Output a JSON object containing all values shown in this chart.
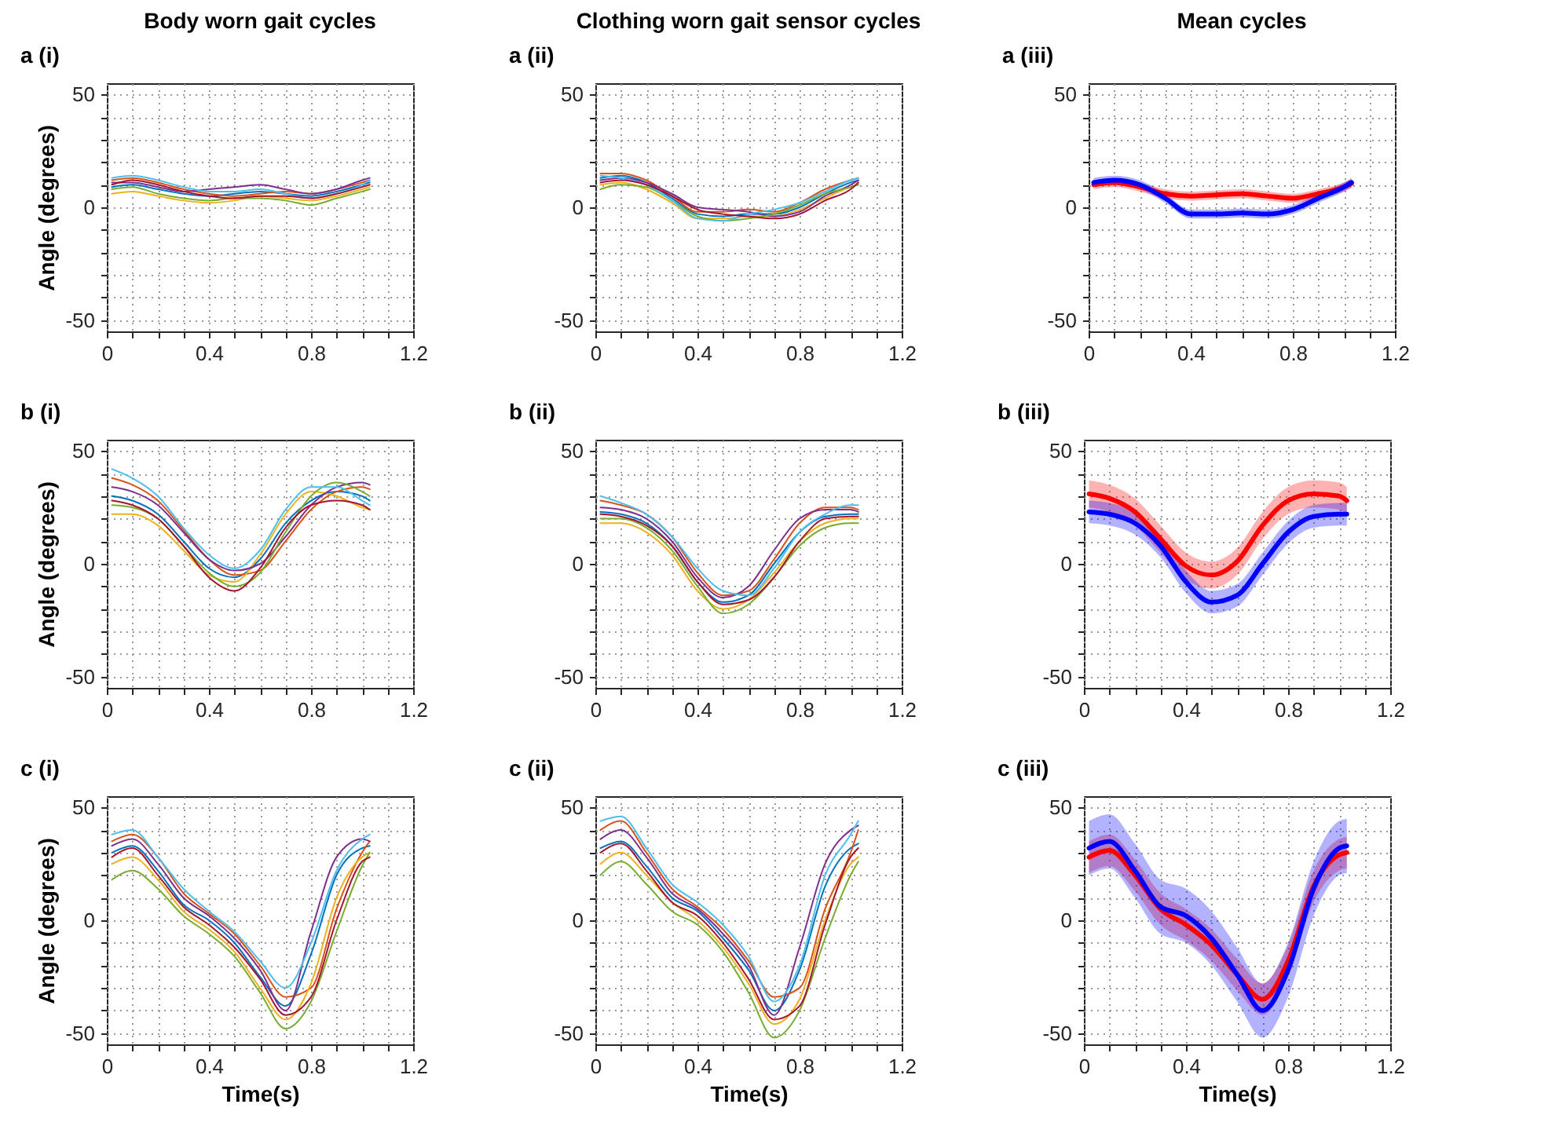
{
  "chart_data": [
    {
      "type": "line",
      "title": "Body worn gait cycles",
      "annotations": [
        "a (i)"
      ],
      "ylabel": "Angle (degrees)",
      "x": [
        0.02,
        0.1,
        0.2,
        0.3,
        0.4,
        0.5,
        0.6,
        0.7,
        0.8,
        0.9,
        1.0,
        1.03
      ],
      "xlim": [
        0,
        1.2
      ],
      "xticks": [
        0,
        {
          "value": 0.1,
          "label": null
        },
        {
          "value": 0.2,
          "label": null
        },
        {
          "value": 0.3,
          "label": null
        },
        0.4,
        {
          "value": 0.5,
          "label": null
        },
        {
          "value": 0.6,
          "label": null
        },
        {
          "value": 0.7,
          "label": null
        },
        0.8,
        {
          "value": 0.9,
          "label": null
        },
        {
          "value": 1.0,
          "label": null
        },
        {
          "value": 1.1,
          "label": null
        },
        1.2
      ],
      "ylim": [
        -55,
        55
      ],
      "yticks": [
        -50,
        {
          "value": -40,
          "label": null
        },
        {
          "value": -30,
          "label": null
        },
        {
          "value": -20,
          "label": null
        },
        {
          "value": -10,
          "label": null
        },
        0,
        {
          "value": 10,
          "label": null
        },
        {
          "value": 20,
          "label": null
        },
        {
          "value": 30,
          "label": null
        },
        {
          "value": 40,
          "label": null
        },
        50
      ],
      "grid": true,
      "series": [
        {
          "color": "#0072bd",
          "values": [
            9,
            10,
            8,
            6,
            5,
            6,
            7,
            6,
            5,
            7,
            10,
            11
          ]
        },
        {
          "color": "#d95319",
          "values": [
            12,
            13,
            11,
            8,
            6,
            5,
            6,
            7,
            6,
            8,
            11,
            12
          ]
        },
        {
          "color": "#edb120",
          "values": [
            6,
            7,
            5,
            3,
            2,
            3,
            5,
            4,
            3,
            5,
            8,
            9
          ]
        },
        {
          "color": "#7e2f8e",
          "values": [
            11,
            11,
            9,
            7,
            8,
            9,
            10,
            8,
            6,
            8,
            12,
            13
          ]
        },
        {
          "color": "#77ac30",
          "values": [
            8,
            9,
            6,
            4,
            3,
            4,
            4,
            3,
            1,
            4,
            7,
            8
          ]
        },
        {
          "color": "#4dbeee",
          "values": [
            13,
            14,
            12,
            9,
            7,
            7,
            8,
            6,
            4,
            6,
            10,
            12
          ]
        },
        {
          "color": "#a2142f",
          "values": [
            10,
            12,
            10,
            7,
            5,
            4,
            5,
            5,
            4,
            6,
            9,
            10
          ]
        }
      ]
    },
    {
      "type": "line",
      "title": "Clothing worn gait sensor cycles",
      "annotations": [
        "a (ii)"
      ],
      "x": [
        0.02,
        0.1,
        0.2,
        0.3,
        0.4,
        0.5,
        0.6,
        0.7,
        0.8,
        0.9,
        1.0,
        1.03
      ],
      "xlim": [
        0,
        1.2
      ],
      "xticks": [
        0,
        {
          "value": 0.1,
          "label": null
        },
        {
          "value": 0.2,
          "label": null
        },
        {
          "value": 0.3,
          "label": null
        },
        0.4,
        {
          "value": 0.5,
          "label": null
        },
        {
          "value": 0.6,
          "label": null
        },
        {
          "value": 0.7,
          "label": null
        },
        0.8,
        {
          "value": 0.9,
          "label": null
        },
        {
          "value": 1.0,
          "label": null
        },
        {
          "value": 1.1,
          "label": null
        },
        1.2
      ],
      "ylim": [
        -55,
        55
      ],
      "yticks": [
        -50,
        {
          "value": -40,
          "label": null
        },
        {
          "value": -30,
          "label": null
        },
        {
          "value": -20,
          "label": null
        },
        {
          "value": -10,
          "label": null
        },
        0,
        {
          "value": 10,
          "label": null
        },
        {
          "value": 20,
          "label": null
        },
        {
          "value": 30,
          "label": null
        },
        {
          "value": 40,
          "label": null
        },
        50
      ],
      "grid": true,
      "series": [
        {
          "color": "#0072bd",
          "values": [
            13,
            14,
            11,
            4,
            -3,
            -4,
            -3,
            -3,
            0,
            6,
            11,
            12
          ]
        },
        {
          "color": "#d95319",
          "values": [
            15,
            15,
            12,
            5,
            -2,
            -2,
            -1,
            -2,
            2,
            8,
            12,
            13
          ]
        },
        {
          "color": "#edb120",
          "values": [
            10,
            11,
            8,
            2,
            -5,
            -5,
            -4,
            -4,
            -1,
            4,
            9,
            10
          ]
        },
        {
          "color": "#7e2f8e",
          "values": [
            12,
            13,
            11,
            6,
            0,
            -1,
            -2,
            -4,
            -2,
            5,
            10,
            12
          ]
        },
        {
          "color": "#77ac30",
          "values": [
            8,
            10,
            9,
            3,
            -4,
            -6,
            -5,
            -3,
            1,
            6,
            9,
            10
          ]
        },
        {
          "color": "#4dbeee",
          "values": [
            14,
            13,
            10,
            3,
            -5,
            -6,
            -3,
            -1,
            2,
            7,
            12,
            13
          ]
        },
        {
          "color": "#a2142f",
          "values": [
            11,
            12,
            10,
            5,
            -1,
            -3,
            -4,
            -5,
            -3,
            3,
            8,
            11
          ]
        }
      ]
    },
    {
      "type": "line",
      "title": "Mean cycles",
      "annotations": [
        "a (iii)"
      ],
      "x": [
        0.02,
        0.1,
        0.2,
        0.3,
        0.4,
        0.5,
        0.6,
        0.7,
        0.8,
        0.9,
        1.0,
        1.03
      ],
      "xlim": [
        0,
        1.2
      ],
      "xticks": [
        0,
        {
          "value": 0.1,
          "label": null
        },
        {
          "value": 0.2,
          "label": null
        },
        {
          "value": 0.3,
          "label": null
        },
        0.4,
        {
          "value": 0.5,
          "label": null
        },
        {
          "value": 0.6,
          "label": null
        },
        {
          "value": 0.7,
          "label": null
        },
        0.8,
        {
          "value": 0.9,
          "label": null
        },
        {
          "value": 1.0,
          "label": null
        },
        {
          "value": 1.1,
          "label": null
        },
        1.2
      ],
      "ylim": [
        -55,
        55
      ],
      "yticks": [
        -50,
        {
          "value": -40,
          "label": null
        },
        {
          "value": -30,
          "label": null
        },
        {
          "value": -20,
          "label": null
        },
        {
          "value": -10,
          "label": null
        },
        0,
        {
          "value": 10,
          "label": null
        },
        {
          "value": 20,
          "label": null
        },
        {
          "value": 30,
          "label": null
        },
        {
          "value": 40,
          "label": null
        },
        50
      ],
      "grid": true,
      "series": [
        {
          "color": "#ff0000",
          "values": [
            10,
            11,
            9,
            6,
            5,
            5.5,
            6,
            5,
            4,
            6,
            9,
            10.5
          ],
          "lower": [
            8,
            9,
            7,
            4,
            3,
            3.5,
            4,
            3,
            2,
            4,
            7,
            8.5
          ],
          "upper": [
            12,
            13,
            11,
            8,
            7,
            7.5,
            8,
            7,
            6,
            8,
            11,
            12.5
          ]
        },
        {
          "color": "#0000ff",
          "values": [
            11,
            12,
            10,
            4,
            -3,
            -3,
            -2.5,
            -3,
            -1,
            4,
            9,
            11
          ],
          "lower": [
            9,
            10,
            8,
            2,
            -5,
            -5,
            -4.5,
            -5,
            -3,
            2,
            7,
            9
          ],
          "upper": [
            13,
            14,
            12,
            6,
            -1,
            -1,
            -0.5,
            -1,
            1,
            6,
            11,
            13
          ]
        }
      ]
    },
    {
      "type": "line",
      "annotations": [
        "b (i)"
      ],
      "ylabel": "Angle (degrees)",
      "x": [
        0.02,
        0.1,
        0.2,
        0.3,
        0.4,
        0.5,
        0.6,
        0.7,
        0.8,
        0.9,
        1.0,
        1.03
      ],
      "xlim": [
        0,
        1.2
      ],
      "xticks": [
        0,
        {
          "value": 0.1,
          "label": null
        },
        {
          "value": 0.2,
          "label": null
        },
        {
          "value": 0.3,
          "label": null
        },
        0.4,
        {
          "value": 0.5,
          "label": null
        },
        {
          "value": 0.6,
          "label": null
        },
        {
          "value": 0.7,
          "label": null
        },
        0.8,
        {
          "value": 0.9,
          "label": null
        },
        {
          "value": 1.0,
          "label": null
        },
        {
          "value": 1.1,
          "label": null
        },
        1.2
      ],
      "ylim": [
        -55,
        55
      ],
      "yticks": [
        -50,
        {
          "value": -40,
          "label": null
        },
        {
          "value": -30,
          "label": null
        },
        {
          "value": -20,
          "label": null
        },
        {
          "value": -10,
          "label": null
        },
        0,
        {
          "value": 10,
          "label": null
        },
        {
          "value": 20,
          "label": null
        },
        {
          "value": 30,
          "label": null
        },
        {
          "value": 40,
          "label": null
        },
        50
      ],
      "grid": true,
      "series": [
        {
          "color": "#0072bd",
          "values": [
            30,
            28,
            22,
            10,
            -2,
            -6,
            2,
            18,
            28,
            32,
            30,
            28
          ]
        },
        {
          "color": "#d95319",
          "values": [
            38,
            35,
            28,
            15,
            2,
            -5,
            -3,
            10,
            24,
            32,
            34,
            33
          ]
        },
        {
          "color": "#edb120",
          "values": [
            22,
            22,
            17,
            6,
            -5,
            -8,
            4,
            22,
            32,
            30,
            25,
            24
          ]
        },
        {
          "color": "#7e2f8e",
          "values": [
            34,
            32,
            26,
            14,
            2,
            -3,
            0,
            12,
            26,
            34,
            36,
            35
          ]
        },
        {
          "color": "#77ac30",
          "values": [
            26,
            25,
            20,
            8,
            -4,
            -10,
            -4,
            14,
            30,
            36,
            32,
            30
          ]
        },
        {
          "color": "#4dbeee",
          "values": [
            42,
            38,
            30,
            16,
            4,
            -2,
            6,
            24,
            34,
            34,
            28,
            26
          ]
        },
        {
          "color": "#a2142f",
          "values": [
            28,
            26,
            20,
            8,
            -6,
            -12,
            -2,
            16,
            26,
            28,
            26,
            24
          ]
        }
      ]
    },
    {
      "type": "line",
      "annotations": [
        "b (ii)"
      ],
      "x": [
        0.02,
        0.1,
        0.2,
        0.3,
        0.4,
        0.5,
        0.6,
        0.7,
        0.8,
        0.9,
        1.0,
        1.03
      ],
      "xlim": [
        0,
        1.2
      ],
      "xticks": [
        0,
        {
          "value": 0.1,
          "label": null
        },
        {
          "value": 0.2,
          "label": null
        },
        {
          "value": 0.3,
          "label": null
        },
        0.4,
        {
          "value": 0.5,
          "label": null
        },
        {
          "value": 0.6,
          "label": null
        },
        {
          "value": 0.7,
          "label": null
        },
        0.8,
        {
          "value": 0.9,
          "label": null
        },
        {
          "value": 1.0,
          "label": null
        },
        {
          "value": 1.1,
          "label": null
        },
        1.2
      ],
      "ylim": [
        -55,
        55
      ],
      "yticks": [
        -50,
        {
          "value": -40,
          "label": null
        },
        {
          "value": -30,
          "label": null
        },
        {
          "value": -20,
          "label": null
        },
        {
          "value": -10,
          "label": null
        },
        0,
        {
          "value": 10,
          "label": null
        },
        {
          "value": 20,
          "label": null
        },
        {
          "value": 30,
          "label": null
        },
        {
          "value": 40,
          "label": null
        },
        50
      ],
      "grid": true,
      "series": [
        {
          "color": "#0072bd",
          "values": [
            23,
            22,
            18,
            8,
            -8,
            -17,
            -14,
            0,
            14,
            21,
            22,
            22
          ]
        },
        {
          "color": "#d95319",
          "values": [
            28,
            26,
            22,
            12,
            -4,
            -14,
            -12,
            2,
            18,
            25,
            25,
            24
          ]
        },
        {
          "color": "#edb120",
          "values": [
            18,
            18,
            14,
            4,
            -12,
            -20,
            -16,
            -4,
            10,
            18,
            20,
            20
          ]
        },
        {
          "color": "#7e2f8e",
          "values": [
            25,
            24,
            20,
            10,
            -6,
            -15,
            -10,
            6,
            20,
            24,
            24,
            23
          ]
        },
        {
          "color": "#77ac30",
          "values": [
            20,
            20,
            16,
            6,
            -10,
            -22,
            -18,
            -6,
            8,
            16,
            18,
            18
          ]
        },
        {
          "color": "#4dbeee",
          "values": [
            30,
            27,
            22,
            12,
            -2,
            -12,
            -14,
            -2,
            14,
            22,
            26,
            26
          ]
        },
        {
          "color": "#a2142f",
          "values": [
            22,
            21,
            17,
            8,
            -8,
            -18,
            -16,
            -6,
            10,
            20,
            21,
            21
          ]
        }
      ]
    },
    {
      "type": "line",
      "annotations": [
        "b (iii)"
      ],
      "x": [
        0.02,
        0.1,
        0.2,
        0.3,
        0.4,
        0.5,
        0.6,
        0.7,
        0.8,
        0.9,
        1.0,
        1.03
      ],
      "xlim": [
        0,
        1.2
      ],
      "xticks": [
        0,
        {
          "value": 0.1,
          "label": null
        },
        {
          "value": 0.2,
          "label": null
        },
        {
          "value": 0.3,
          "label": null
        },
        0.4,
        {
          "value": 0.5,
          "label": null
        },
        {
          "value": 0.6,
          "label": null
        },
        {
          "value": 0.7,
          "label": null
        },
        0.8,
        {
          "value": 0.9,
          "label": null
        },
        {
          "value": 1.0,
          "label": null
        },
        {
          "value": 1.1,
          "label": null
        },
        1.2
      ],
      "ylim": [
        -55,
        55
      ],
      "yticks": [
        -50,
        {
          "value": -40,
          "label": null
        },
        {
          "value": -30,
          "label": null
        },
        {
          "value": -20,
          "label": null
        },
        {
          "value": -10,
          "label": null
        },
        0,
        {
          "value": 10,
          "label": null
        },
        {
          "value": 20,
          "label": null
        },
        {
          "value": 30,
          "label": null
        },
        {
          "value": 40,
          "label": null
        },
        50
      ],
      "grid": true,
      "series": [
        {
          "color": "#ff0000",
          "values": [
            31,
            29,
            23,
            11,
            -1,
            -5,
            1,
            17,
            28,
            31,
            30,
            28
          ],
          "lower": [
            25,
            23,
            17,
            5,
            -7,
            -11,
            -5,
            11,
            22,
            25,
            24,
            22
          ],
          "upper": [
            37,
            35,
            29,
            17,
            5,
            1,
            7,
            23,
            34,
            37,
            36,
            34
          ]
        },
        {
          "color": "#0000ff",
          "values": [
            23,
            22,
            18,
            8,
            -8,
            -17,
            -14,
            0,
            14,
            21,
            22,
            22
          ],
          "lower": [
            18,
            17,
            13,
            3,
            -13,
            -22,
            -19,
            -5,
            9,
            16,
            17,
            17
          ],
          "upper": [
            28,
            27,
            23,
            13,
            -3,
            -12,
            -9,
            5,
            19,
            26,
            27,
            27
          ]
        }
      ]
    },
    {
      "type": "line",
      "annotations": [
        "c (i)"
      ],
      "xlabel": "Time(s)",
      "ylabel": "Angle (degrees)",
      "x": [
        0.02,
        0.1,
        0.2,
        0.3,
        0.4,
        0.5,
        0.6,
        0.7,
        0.8,
        0.9,
        1.0,
        1.03
      ],
      "xlim": [
        0,
        1.2
      ],
      "xticks": [
        0,
        {
          "value": 0.1,
          "label": null
        },
        {
          "value": 0.2,
          "label": null
        },
        {
          "value": 0.3,
          "label": null
        },
        0.4,
        {
          "value": 0.5,
          "label": null
        },
        {
          "value": 0.6,
          "label": null
        },
        {
          "value": 0.7,
          "label": null
        },
        0.8,
        {
          "value": 0.9,
          "label": null
        },
        {
          "value": 1.0,
          "label": null
        },
        {
          "value": 1.1,
          "label": null
        },
        1.2
      ],
      "ylim": [
        -55,
        55
      ],
      "yticks": [
        -50,
        {
          "value": -40,
          "label": null
        },
        {
          "value": -30,
          "label": null
        },
        {
          "value": -20,
          "label": null
        },
        {
          "value": -10,
          "label": null
        },
        0,
        {
          "value": 10,
          "label": null
        },
        {
          "value": 20,
          "label": null
        },
        {
          "value": 30,
          "label": null
        },
        {
          "value": 40,
          "label": null
        },
        50
      ],
      "grid": true,
      "series": [
        {
          "color": "#0072bd",
          "values": [
            30,
            33,
            22,
            7,
            0,
            -10,
            -25,
            -38,
            -15,
            20,
            32,
            33
          ]
        },
        {
          "color": "#d95319",
          "values": [
            35,
            38,
            28,
            12,
            3,
            -6,
            -20,
            -34,
            -30,
            5,
            30,
            35
          ]
        },
        {
          "color": "#edb120",
          "values": [
            25,
            28,
            18,
            4,
            -4,
            -14,
            -30,
            -44,
            -28,
            10,
            28,
            30
          ]
        },
        {
          "color": "#7e2f8e",
          "values": [
            33,
            36,
            25,
            10,
            2,
            -8,
            -22,
            -40,
            -5,
            28,
            36,
            35
          ]
        },
        {
          "color": "#77ac30",
          "values": [
            18,
            22,
            14,
            2,
            -6,
            -16,
            -32,
            -48,
            -36,
            -5,
            24,
            30
          ]
        },
        {
          "color": "#4dbeee",
          "values": [
            38,
            40,
            28,
            14,
            4,
            -5,
            -18,
            -30,
            -10,
            22,
            36,
            38
          ]
        },
        {
          "color": "#a2142f",
          "values": [
            28,
            32,
            20,
            6,
            -2,
            -12,
            -26,
            -42,
            -34,
            0,
            26,
            28
          ]
        }
      ]
    },
    {
      "type": "line",
      "annotations": [
        "c (ii)"
      ],
      "xlabel": "Time(s)",
      "x": [
        0.02,
        0.1,
        0.2,
        0.3,
        0.4,
        0.5,
        0.6,
        0.7,
        0.8,
        0.9,
        1.0,
        1.03
      ],
      "xlim": [
        0,
        1.2
      ],
      "xticks": [
        0,
        {
          "value": 0.1,
          "label": null
        },
        {
          "value": 0.2,
          "label": null
        },
        {
          "value": 0.3,
          "label": null
        },
        0.4,
        {
          "value": 0.5,
          "label": null
        },
        {
          "value": 0.6,
          "label": null
        },
        {
          "value": 0.7,
          "label": null
        },
        0.8,
        {
          "value": 0.9,
          "label": null
        },
        {
          "value": 1.0,
          "label": null
        },
        {
          "value": 1.1,
          "label": null
        },
        1.2
      ],
      "ylim": [
        -55,
        55
      ],
      "yticks": [
        -50,
        {
          "value": -40,
          "label": null
        },
        {
          "value": -30,
          "label": null
        },
        {
          "value": -20,
          "label": null
        },
        {
          "value": -10,
          "label": null
        },
        0,
        {
          "value": 10,
          "label": null
        },
        {
          "value": 20,
          "label": null
        },
        {
          "value": 30,
          "label": null
        },
        {
          "value": 40,
          "label": null
        },
        50
      ],
      "grid": true,
      "series": [
        {
          "color": "#0072bd",
          "values": [
            32,
            35,
            24,
            10,
            4,
            -8,
            -22,
            -40,
            -22,
            15,
            32,
            34
          ]
        },
        {
          "color": "#d95319",
          "values": [
            40,
            44,
            30,
            14,
            6,
            -4,
            -18,
            -34,
            -30,
            5,
            30,
            40
          ]
        },
        {
          "color": "#edb120",
          "values": [
            25,
            30,
            20,
            8,
            0,
            -12,
            -28,
            -46,
            -35,
            0,
            25,
            28
          ]
        },
        {
          "color": "#7e2f8e",
          "values": [
            36,
            40,
            28,
            12,
            5,
            -6,
            -20,
            -42,
            -12,
            25,
            40,
            42
          ]
        },
        {
          "color": "#77ac30",
          "values": [
            20,
            26,
            16,
            4,
            -2,
            -14,
            -32,
            -52,
            -40,
            -8,
            20,
            26
          ]
        },
        {
          "color": "#4dbeee",
          "values": [
            44,
            46,
            32,
            16,
            8,
            -2,
            -16,
            -36,
            -20,
            20,
            38,
            44
          ]
        },
        {
          "color": "#a2142f",
          "values": [
            30,
            34,
            22,
            8,
            2,
            -10,
            -26,
            -44,
            -38,
            -2,
            28,
            32
          ]
        }
      ]
    },
    {
      "type": "line",
      "annotations": [
        "c (iii)"
      ],
      "xlabel": "Time(s)",
      "x": [
        0.02,
        0.1,
        0.2,
        0.3,
        0.4,
        0.5,
        0.6,
        0.7,
        0.8,
        0.9,
        1.0,
        1.03
      ],
      "xlim": [
        0,
        1.2
      ],
      "xticks": [
        0,
        {
          "value": 0.1,
          "label": null
        },
        {
          "value": 0.2,
          "label": null
        },
        {
          "value": 0.3,
          "label": null
        },
        0.4,
        {
          "value": 0.5,
          "label": null
        },
        {
          "value": 0.6,
          "label": null
        },
        {
          "value": 0.7,
          "label": null
        },
        0.8,
        {
          "value": 0.9,
          "label": null
        },
        {
          "value": 1.0,
          "label": null
        },
        {
          "value": 1.1,
          "label": null
        },
        1.2
      ],
      "ylim": [
        -55,
        55
      ],
      "yticks": [
        -50,
        {
          "value": -40,
          "label": null
        },
        {
          "value": -30,
          "label": null
        },
        {
          "value": -20,
          "label": null
        },
        {
          "value": -10,
          "label": null
        },
        0,
        {
          "value": 10,
          "label": null
        },
        {
          "value": 20,
          "label": null
        },
        {
          "value": 30,
          "label": null
        },
        {
          "value": 40,
          "label": null
        },
        50
      ],
      "grid": true,
      "series": [
        {
          "color": "#ff0000",
          "values": [
            28,
            31,
            20,
            5,
            -2,
            -11,
            -24,
            -35,
            -18,
            15,
            29,
            30
          ],
          "lower": [
            21,
            24,
            13,
            -2,
            -9,
            -18,
            -31,
            -42,
            -25,
            8,
            22,
            23
          ],
          "upper": [
            35,
            38,
            27,
            12,
            5,
            -4,
            -17,
            -28,
            -11,
            22,
            36,
            37
          ]
        },
        {
          "color": "#0000ff",
          "values": [
            32,
            35,
            22,
            6,
            2,
            -8,
            -24,
            -40,
            -22,
            14,
            32,
            33
          ],
          "lower": [
            20,
            23,
            10,
            -6,
            -10,
            -20,
            -36,
            -52,
            -34,
            2,
            20,
            21
          ],
          "upper": [
            44,
            47,
            34,
            18,
            14,
            4,
            -12,
            -28,
            -10,
            26,
            44,
            45
          ]
        }
      ]
    }
  ]
}
